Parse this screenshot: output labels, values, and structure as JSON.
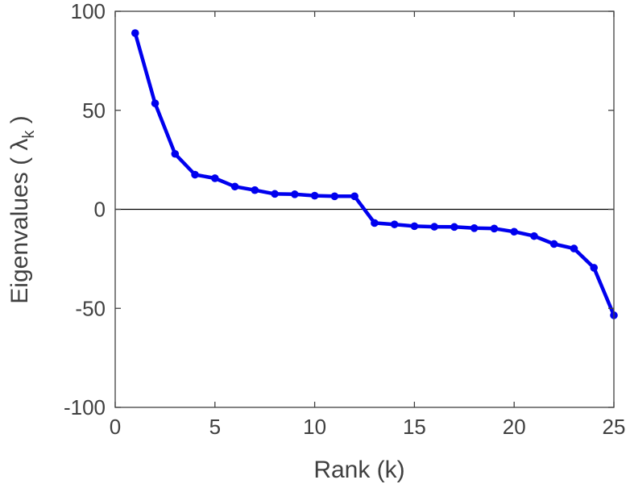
{
  "chart_data": {
    "type": "line",
    "title": "",
    "xlabel": "Rank (k)",
    "ylabel": {
      "prefix": "Eigenvalues (  ",
      "symbol": "λ",
      "subscript": "k",
      "suffix": " )"
    },
    "xlim": [
      0,
      25
    ],
    "ylim": [
      -100,
      100
    ],
    "xticks": [
      0,
      5,
      10,
      15,
      20,
      25
    ],
    "yticks": [
      100,
      50,
      0,
      -50,
      -100
    ],
    "grid": false,
    "zero_line": true,
    "colors": {
      "series": "#0000ee",
      "axis": "#404040",
      "zero_line": "#000000"
    },
    "series": [
      {
        "name": "",
        "x": [
          1,
          2,
          3,
          4,
          5,
          6,
          7,
          8,
          9,
          10,
          11,
          12,
          13,
          14,
          15,
          16,
          17,
          18,
          19,
          20,
          21,
          22,
          23,
          24,
          25
        ],
        "y": [
          89,
          53.5,
          28,
          17.5,
          15.7,
          11.5,
          9.7,
          7.8,
          7.6,
          6.9,
          6.6,
          6.6,
          -6.9,
          -7.6,
          -8.5,
          -8.8,
          -8.9,
          -9.5,
          -9.7,
          -11.3,
          -13.5,
          -17.5,
          -19.8,
          -29.5,
          -53.5
        ]
      }
    ]
  }
}
